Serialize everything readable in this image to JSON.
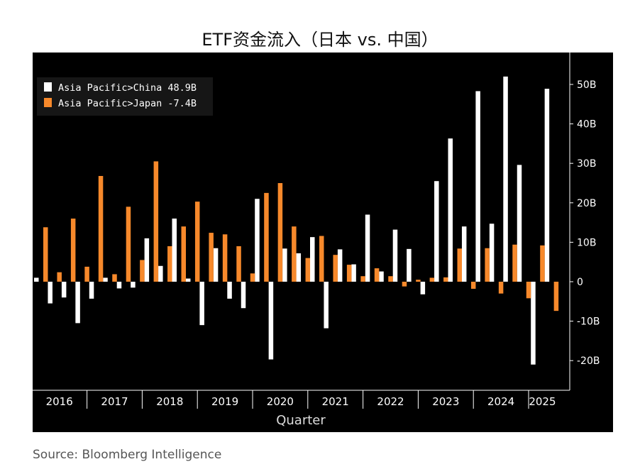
{
  "title": "ETF资金流入（日本 vs. 中国）",
  "source": "Source: Bloomberg Intelligence",
  "colors": {
    "china": "#ffffff",
    "japan": "#f7892b",
    "background": "#000000",
    "axis": "#ffffff"
  },
  "chart_data": {
    "type": "bar",
    "xlabel": "Quarter",
    "ylabel": "",
    "ylim": [
      -28,
      56
    ],
    "yticks": [
      -20,
      -10,
      0,
      10,
      20,
      30,
      40,
      50
    ],
    "ytick_labels": [
      "-20B",
      "-10B",
      "0",
      "10B",
      "20B",
      "30B",
      "40B",
      "50B"
    ],
    "years": [
      "2016",
      "2017",
      "2018",
      "2019",
      "2020",
      "2021",
      "2022",
      "2023",
      "2024",
      "2025"
    ],
    "quarters_per_year": [
      4,
      4,
      4,
      4,
      4,
      4,
      4,
      4,
      4,
      2
    ],
    "legend": {
      "position": "top-left",
      "entries": [
        {
          "label": "Asia Pacific>China",
          "value": "48.9B"
        },
        {
          "label": "Asia Pacific>Japan",
          "value": "-7.4B"
        }
      ]
    },
    "series": [
      {
        "name": "Asia Pacific>China",
        "values": [
          1,
          -5.5,
          -4,
          -10.5,
          -4.3,
          1,
          -1.7,
          -1.5,
          11,
          4,
          16,
          0.8,
          -11,
          8.5,
          -4.3,
          -6.7,
          21,
          -19.7,
          8.4,
          7.2,
          11.3,
          -11.8,
          8.2,
          4.4,
          17,
          2.6,
          13.2,
          8.3,
          -3.2,
          25.5,
          36.3,
          14,
          48.3,
          14.7,
          52,
          29.6,
          -21,
          48.9
        ]
      },
      {
        "name": "Asia Pacific>Japan",
        "values": [
          13.8,
          2.4,
          16,
          3.8,
          26.8,
          1.9,
          19,
          5.5,
          30.5,
          9,
          14,
          20.3,
          12.4,
          12,
          9,
          2.1,
          22.5,
          25,
          14,
          6,
          11.6,
          6.8,
          4.3,
          1.4,
          3.4,
          1.4,
          -1.2,
          0.5,
          1,
          1.1,
          8.4,
          -1.8,
          8.5,
          -3,
          9.4,
          -4.2,
          9.2,
          -7.4
        ]
      }
    ]
  }
}
